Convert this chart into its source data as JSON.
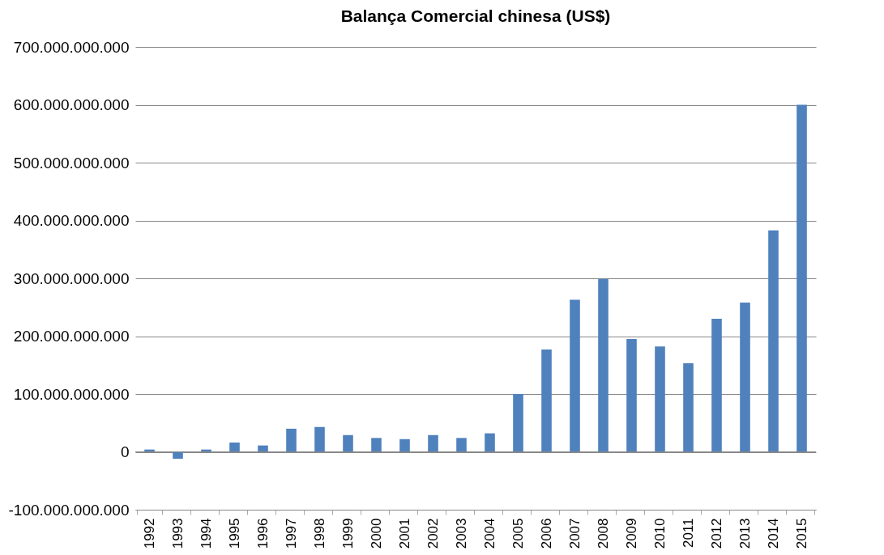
{
  "chart_data": {
    "type": "bar",
    "title": "Balança Comercial chinesa (US$)",
    "categories": [
      "1992",
      "1993",
      "1994",
      "1995",
      "1996",
      "1997",
      "1998",
      "1999",
      "2000",
      "2001",
      "2002",
      "2003",
      "2004",
      "2005",
      "2006",
      "2007",
      "2008",
      "2009",
      "2010",
      "2011",
      "2012",
      "2013",
      "2014",
      "2015"
    ],
    "values": [
      4000000000,
      -12000000000,
      4000000000,
      16000000000,
      11000000000,
      40000000000,
      43000000000,
      29000000000,
      24000000000,
      22000000000,
      29000000000,
      24000000000,
      32000000000,
      100000000000,
      177000000000,
      263000000000,
      299000000000,
      195000000000,
      182000000000,
      153000000000,
      230000000000,
      258000000000,
      383000000000,
      600000000000
    ],
    "color": "#4f81bd",
    "ylim": [
      -100000000000,
      700000000000
    ],
    "yticks": [
      {
        "value": -100000000000,
        "label": "-100.000.000.000"
      },
      0,
      {
        "value": 100000000000,
        "label": "100.000.000.000"
      },
      {
        "value": 200000000000,
        "label": "200.000.000.000"
      },
      {
        "value": 300000000000,
        "label": "300.000.000.000"
      },
      {
        "value": 400000000000,
        "label": "400.000.000.000"
      },
      {
        "value": 500000000000,
        "label": "500.000.000.000"
      },
      {
        "value": 600000000000,
        "label": "600.000.000.000"
      },
      {
        "value": 700000000000,
        "label": "700.000.000.000"
      }
    ],
    "grid": "y"
  }
}
